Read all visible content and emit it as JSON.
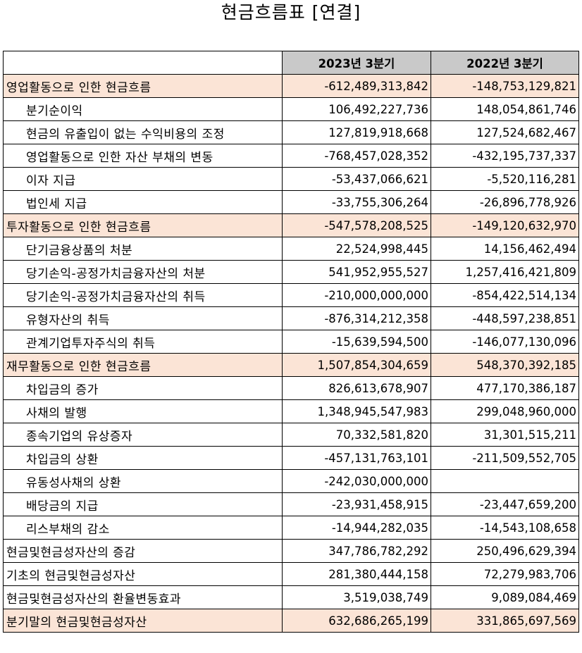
{
  "title": "현금흐름표 [연결]",
  "columns": {
    "label": "",
    "period1": "2023년 3분기",
    "period2": "2022년 3분기"
  },
  "rows": [
    {
      "label": "영업활동으로 인한 현금흐름",
      "v1": "-612,489,313,842",
      "v2": "-148,753,129,821",
      "kind": "section"
    },
    {
      "label": "분기순이익",
      "v1": "106,492,227,736",
      "v2": "148,054,861,746",
      "kind": "sub"
    },
    {
      "label": "현금의 유출입이 없는 수익비용의 조정",
      "v1": "127,819,918,668",
      "v2": "127,524,682,467",
      "kind": "sub"
    },
    {
      "label": "영업활동으로 인한 자산 부채의 변동",
      "v1": "-768,457,028,352",
      "v2": "-432,195,737,337",
      "kind": "sub"
    },
    {
      "label": "이자 지급",
      "v1": "-53,437,066,621",
      "v2": "-5,520,116,281",
      "kind": "sub"
    },
    {
      "label": "법인세 지급",
      "v1": "-33,755,306,264",
      "v2": "-26,896,778,926",
      "kind": "sub"
    },
    {
      "label": "투자활동으로 인한 현금흐름",
      "v1": "-547,578,208,525",
      "v2": "-149,120,632,970",
      "kind": "section"
    },
    {
      "label": "단기금융상품의 처분",
      "v1": "22,524,998,445",
      "v2": "14,156,462,494",
      "kind": "sub"
    },
    {
      "label": "당기손익-공정가치금융자산의 처분",
      "v1": "541,952,955,527",
      "v2": "1,257,416,421,809",
      "kind": "sub"
    },
    {
      "label": "당기손익-공정가치금융자산의 취득",
      "v1": "-210,000,000,000",
      "v2": "-854,422,514,134",
      "kind": "sub"
    },
    {
      "label": "유형자산의 취득",
      "v1": "-876,314,212,358",
      "v2": "-448,597,238,851",
      "kind": "sub"
    },
    {
      "label": "관계기업투자주식의 취득",
      "v1": "-15,639,594,500",
      "v2": "-146,077,130,096",
      "kind": "sub"
    },
    {
      "label": "재무활동으로 인한 현금흐름",
      "v1": "1,507,854,304,659",
      "v2": "548,370,392,185",
      "kind": "section"
    },
    {
      "label": "차입금의 증가",
      "v1": "826,613,678,907",
      "v2": "477,170,386,187",
      "kind": "sub"
    },
    {
      "label": "사채의 발행",
      "v1": "1,348,945,547,983",
      "v2": "299,048,960,000",
      "kind": "sub"
    },
    {
      "label": "종속기업의 유상증자",
      "v1": "70,332,581,820",
      "v2": "31,301,515,211",
      "kind": "sub"
    },
    {
      "label": "차입금의 상환",
      "v1": "-457,131,763,101",
      "v2": "-211,509,552,705",
      "kind": "sub"
    },
    {
      "label": "유동성사채의 상환",
      "v1": "-242,030,000,000",
      "v2": "",
      "kind": "sub"
    },
    {
      "label": "배당금의 지급",
      "v1": "-23,931,458,915",
      "v2": "-23,447,659,200",
      "kind": "sub"
    },
    {
      "label": "리스부채의 감소",
      "v1": "-14,944,282,035",
      "v2": "-14,543,108,658",
      "kind": "sub"
    },
    {
      "label": "현금및현금성자산의 증감",
      "v1": "347,786,782,292",
      "v2": "250,496,629,394",
      "kind": "total"
    },
    {
      "label": "기초의 현금및현금성자산",
      "v1": "281,380,444,158",
      "v2": "72,279,983,706",
      "kind": "total"
    },
    {
      "label": "현금및현금성자산의 환율변동효과",
      "v1": "3,519,038,749",
      "v2": "9,089,084,469",
      "kind": "total"
    },
    {
      "label": "분기말의 현금및현금성자산",
      "v1": "632,686,265,199",
      "v2": "331,865,697,569",
      "kind": "section"
    }
  ],
  "colors": {
    "header_fill": "#c9c9c9",
    "section_fill": "#fbe4d6",
    "border": "#000000"
  }
}
